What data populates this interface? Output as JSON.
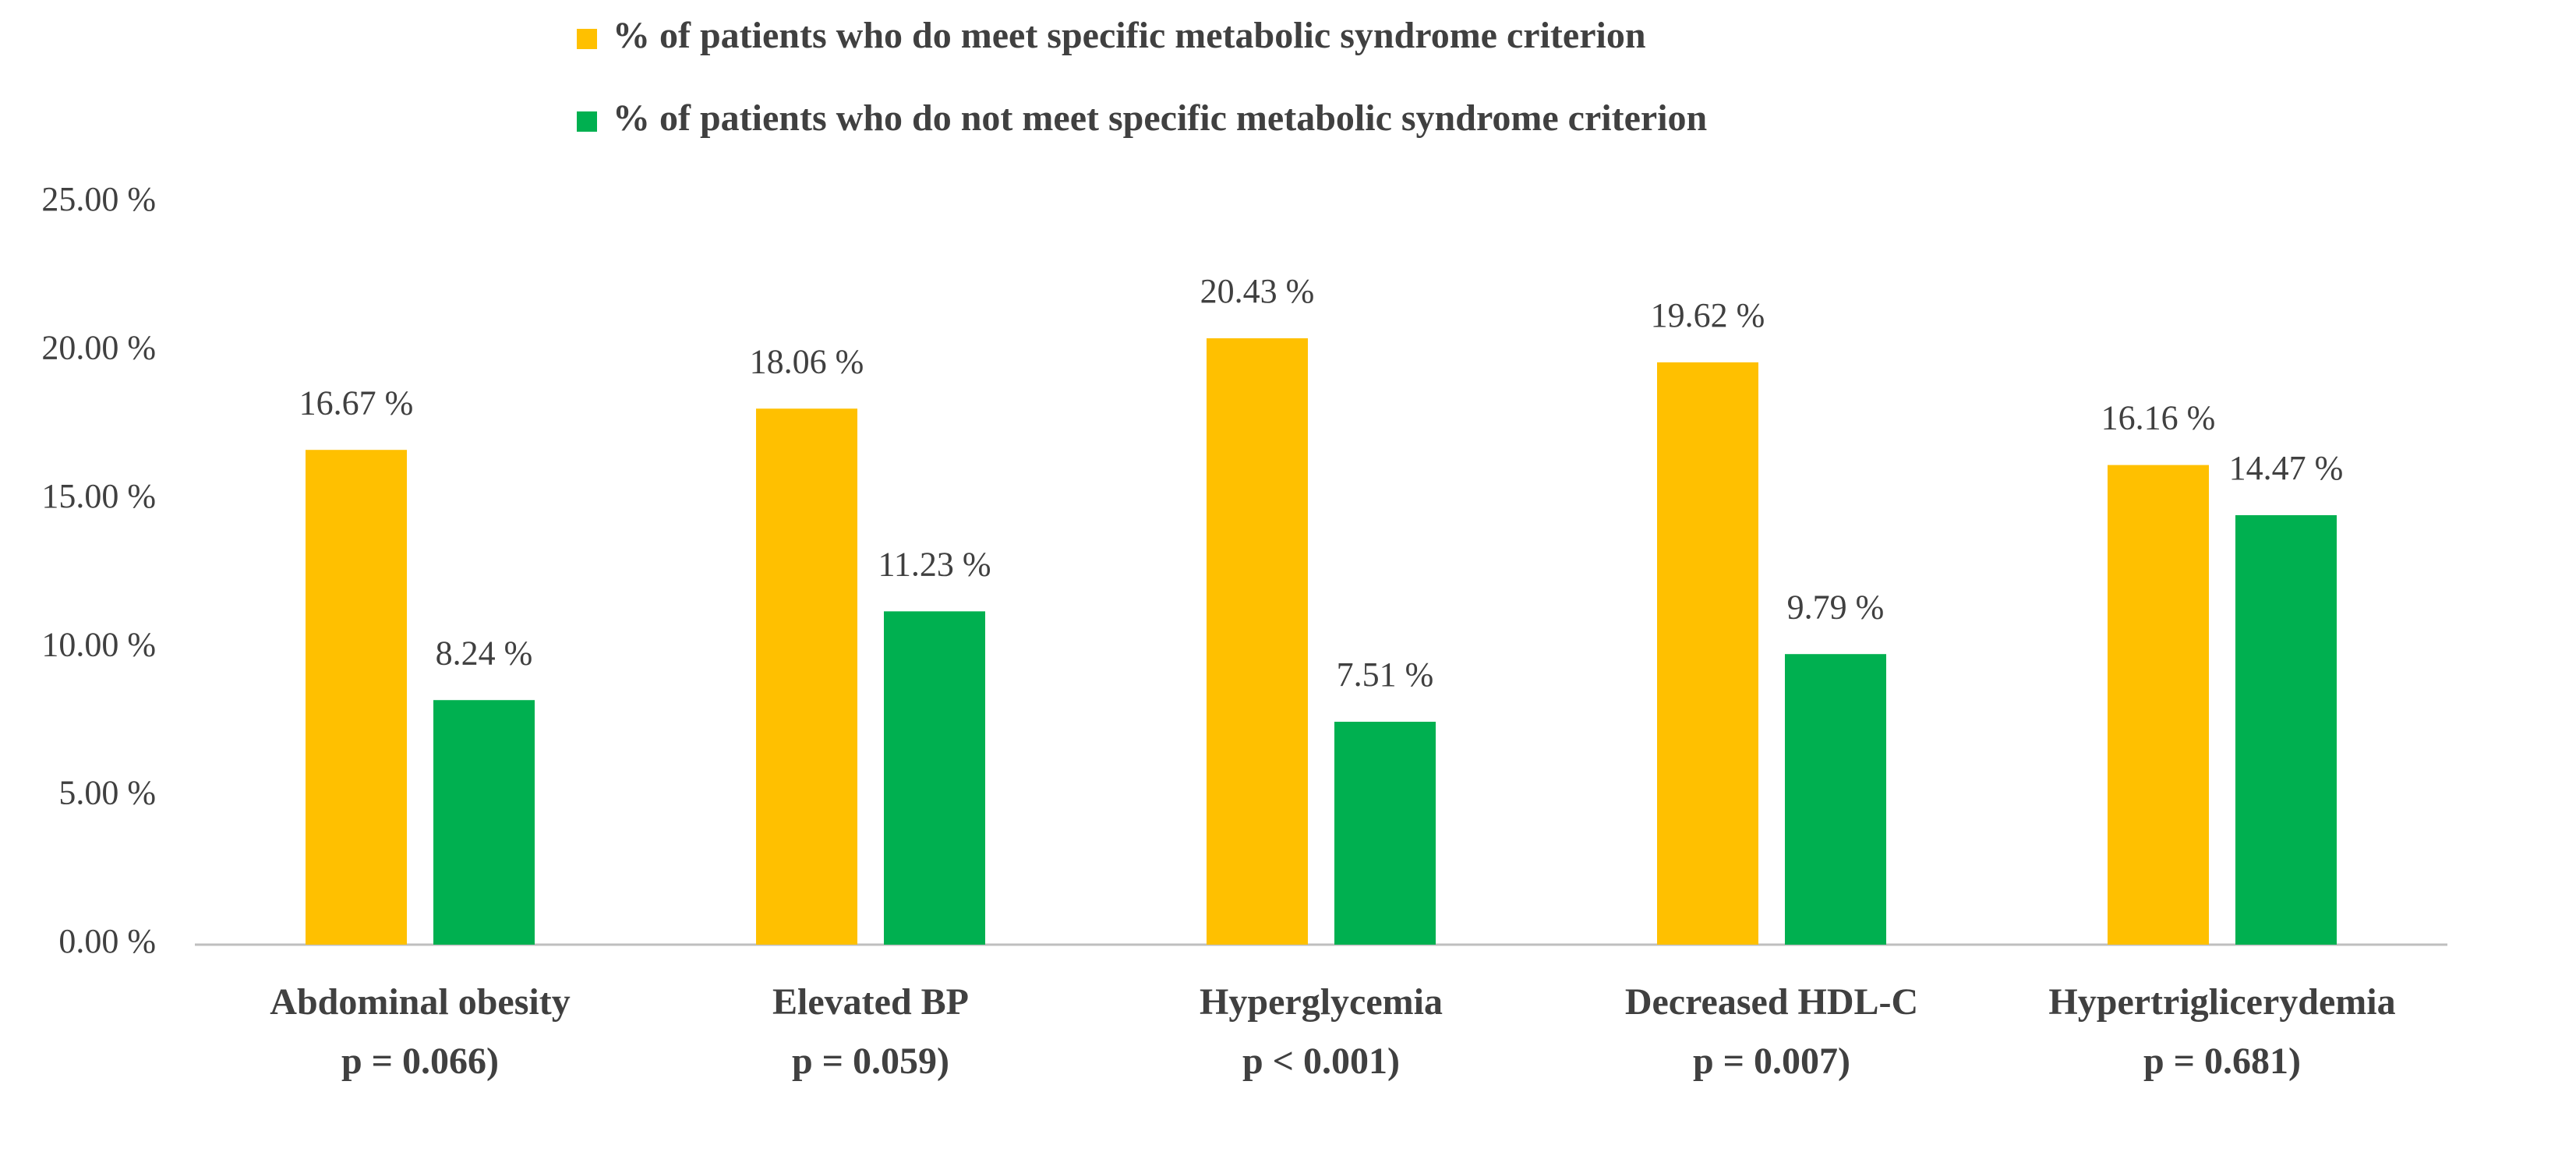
{
  "chart_data": {
    "type": "bar",
    "categories": [
      "Abdominal obesity",
      "Elevated BP",
      "Hyperglycemia",
      "Decreased HDL-C",
      "Hypertriglicerydemia"
    ],
    "category_notes": [
      "p = 0.066)",
      "p = 0.059)",
      "p < 0.001)",
      "p = 0.007)",
      "p = 0.681)"
    ],
    "series": [
      {
        "name": "% of patients who do meet specific metabolic syndrome criterion",
        "color": "#ffc000",
        "values": [
          16.67,
          18.06,
          20.43,
          19.62,
          16.16
        ],
        "value_labels": [
          "16.67 %",
          "18.06 %",
          "20.43 %",
          "19.62 %",
          "16.16 %"
        ]
      },
      {
        "name": "% of patients who do not meet specific metabolic syndrome criterion",
        "color": "#00b050",
        "values": [
          8.24,
          11.23,
          7.51,
          9.79,
          14.47
        ],
        "value_labels": [
          "8.24 %",
          "11.23 %",
          "7.51 %",
          "9.79 %",
          "14.47 %"
        ]
      }
    ],
    "ylim": [
      0,
      25
    ],
    "yticks": [
      {
        "value": 0,
        "label": "0.00 %"
      },
      {
        "value": 5,
        "label": "5.00 %"
      },
      {
        "value": 10,
        "label": "10.00 %"
      },
      {
        "value": 15,
        "label": "15.00 %"
      },
      {
        "value": 20,
        "label": "20.00 %"
      },
      {
        "value": 25,
        "label": "25.00 %"
      }
    ],
    "grid": false,
    "legend": "top"
  }
}
